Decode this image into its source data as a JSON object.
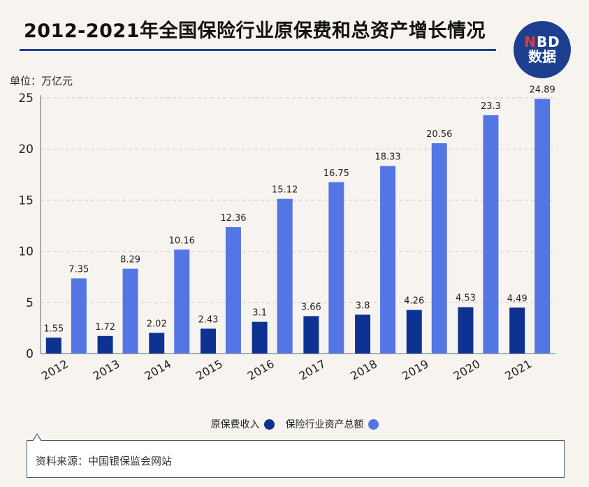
{
  "header": {
    "title": "2012-2021年全国保险行业原保费和总资产增长情况",
    "logo_line1_a": "N",
    "logo_line1_b": "BD",
    "logo_line2": "数据"
  },
  "unit_label": "单位：万亿元",
  "source": "资料来源：中国银保监会网站",
  "colors": {
    "premium": "#0d3292",
    "assets": "#5475e4",
    "title_rule": "#1f3f94",
    "grid": "#c9c9c9"
  },
  "chart_data": {
    "type": "bar",
    "title": "2012-2021年全国保险行业原保费和总资产增长情况",
    "ylabel": "单位：万亿元",
    "xlabel": "",
    "ylim": [
      0,
      25
    ],
    "yticks": [
      0,
      5,
      10,
      15,
      20,
      25
    ],
    "grid": true,
    "legend_position": "bottom",
    "categories": [
      "2012",
      "2013",
      "2014",
      "2015",
      "2016",
      "2017",
      "2018",
      "2019",
      "2020",
      "2021"
    ],
    "series": [
      {
        "name": "原保费收入",
        "values": [
          1.55,
          1.72,
          2.02,
          2.43,
          3.1,
          3.66,
          3.8,
          4.26,
          4.53,
          4.49
        ]
      },
      {
        "name": "保险行业资产总额",
        "values": [
          7.35,
          8.29,
          10.16,
          12.36,
          15.12,
          16.75,
          18.33,
          20.56,
          23.3,
          24.89
        ]
      }
    ]
  }
}
